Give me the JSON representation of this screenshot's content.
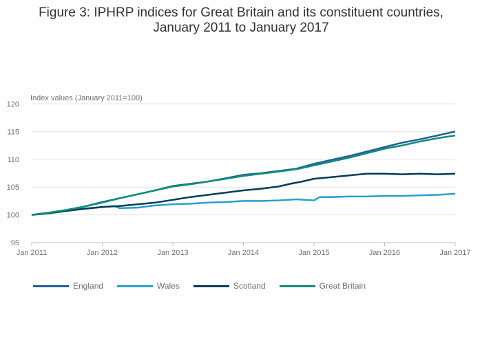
{
  "title_line1": "Figure 3: IPHRP indices for Great Britain and its constituent countries,",
  "title_line2": "January 2011 to January 2017",
  "chart_data": {
    "type": "line",
    "ylabel": "Index values (January 2011=100)",
    "ylim": [
      95,
      120
    ],
    "y_ticks": [
      95,
      100,
      105,
      110,
      115,
      120
    ],
    "x_ticks": [
      "Jan 2011",
      "Jan 2012",
      "Jan 2013",
      "Jan 2014",
      "Jan 2015",
      "Jan 2016",
      "Jan 2017"
    ],
    "x_range_months": [
      0,
      72
    ],
    "grid": true,
    "legend_position": "bottom",
    "series": [
      {
        "name": "England",
        "color": "#206095",
        "values": [
          [
            0,
            100
          ],
          [
            3,
            100.4
          ],
          [
            6,
            100.9
          ],
          [
            9,
            101.5
          ],
          [
            12,
            102.3
          ],
          [
            15,
            103
          ],
          [
            18,
            103.7
          ],
          [
            21,
            104.4
          ],
          [
            24,
            105.2
          ],
          [
            27,
            105.6
          ],
          [
            30,
            106
          ],
          [
            33,
            106.6
          ],
          [
            36,
            107.2
          ],
          [
            39,
            107.5
          ],
          [
            42,
            107.9
          ],
          [
            45,
            108.3
          ],
          [
            48,
            109.2
          ],
          [
            51,
            109.9
          ],
          [
            54,
            110.6
          ],
          [
            57,
            111.4
          ],
          [
            60,
            112.2
          ],
          [
            63,
            113
          ],
          [
            66,
            113.6
          ],
          [
            69,
            114.3
          ],
          [
            72,
            115
          ]
        ]
      },
      {
        "name": "Wales",
        "color": "#27a0cc",
        "values": [
          [
            0,
            100
          ],
          [
            3,
            100.3
          ],
          [
            6,
            100.8
          ],
          [
            9,
            101.1
          ],
          [
            12,
            101.4
          ],
          [
            14,
            101.6
          ],
          [
            15,
            101.2
          ],
          [
            18,
            101.3
          ],
          [
            21,
            101.7
          ],
          [
            24,
            101.9
          ],
          [
            27,
            102
          ],
          [
            30,
            102.2
          ],
          [
            33,
            102.3
          ],
          [
            36,
            102.5
          ],
          [
            39,
            102.5
          ],
          [
            42,
            102.6
          ],
          [
            45,
            102.8
          ],
          [
            48,
            102.6
          ],
          [
            49,
            103.2
          ],
          [
            51,
            103.2
          ],
          [
            54,
            103.3
          ],
          [
            57,
            103.3
          ],
          [
            60,
            103.4
          ],
          [
            63,
            103.4
          ],
          [
            66,
            103.5
          ],
          [
            69,
            103.6
          ],
          [
            72,
            103.8
          ]
        ]
      },
      {
        "name": "Scotland",
        "color": "#003c57",
        "values": [
          [
            0,
            100
          ],
          [
            1,
            100.1
          ],
          [
            3,
            100.3
          ],
          [
            6,
            100.7
          ],
          [
            9,
            101.1
          ],
          [
            12,
            101.4
          ],
          [
            15,
            101.6
          ],
          [
            18,
            101.9
          ],
          [
            21,
            102.2
          ],
          [
            24,
            102.7
          ],
          [
            27,
            103.2
          ],
          [
            30,
            103.6
          ],
          [
            33,
            104
          ],
          [
            36,
            104.4
          ],
          [
            39,
            104.7
          ],
          [
            42,
            105.1
          ],
          [
            44,
            105.6
          ],
          [
            46,
            106
          ],
          [
            48,
            106.5
          ],
          [
            51,
            106.8
          ],
          [
            54,
            107.1
          ],
          [
            57,
            107.4
          ],
          [
            60,
            107.4
          ],
          [
            63,
            107.3
          ],
          [
            66,
            107.4
          ],
          [
            69,
            107.3
          ],
          [
            72,
            107.4
          ]
        ]
      },
      {
        "name": "Great Britain",
        "color": "#118c7b",
        "values": [
          [
            0,
            100
          ],
          [
            3,
            100.4
          ],
          [
            6,
            100.9
          ],
          [
            9,
            101.5
          ],
          [
            12,
            102.2
          ],
          [
            15,
            103
          ],
          [
            18,
            103.7
          ],
          [
            21,
            104.4
          ],
          [
            24,
            105.1
          ],
          [
            27,
            105.5
          ],
          [
            30,
            106
          ],
          [
            33,
            106.5
          ],
          [
            36,
            107
          ],
          [
            39,
            107.4
          ],
          [
            42,
            107.8
          ],
          [
            45,
            108.2
          ],
          [
            48,
            108.9
          ],
          [
            51,
            109.6
          ],
          [
            54,
            110.3
          ],
          [
            57,
            111.1
          ],
          [
            60,
            111.9
          ],
          [
            63,
            112.5
          ],
          [
            66,
            113.2
          ],
          [
            69,
            113.8
          ],
          [
            72,
            114.3
          ]
        ]
      }
    ]
  }
}
